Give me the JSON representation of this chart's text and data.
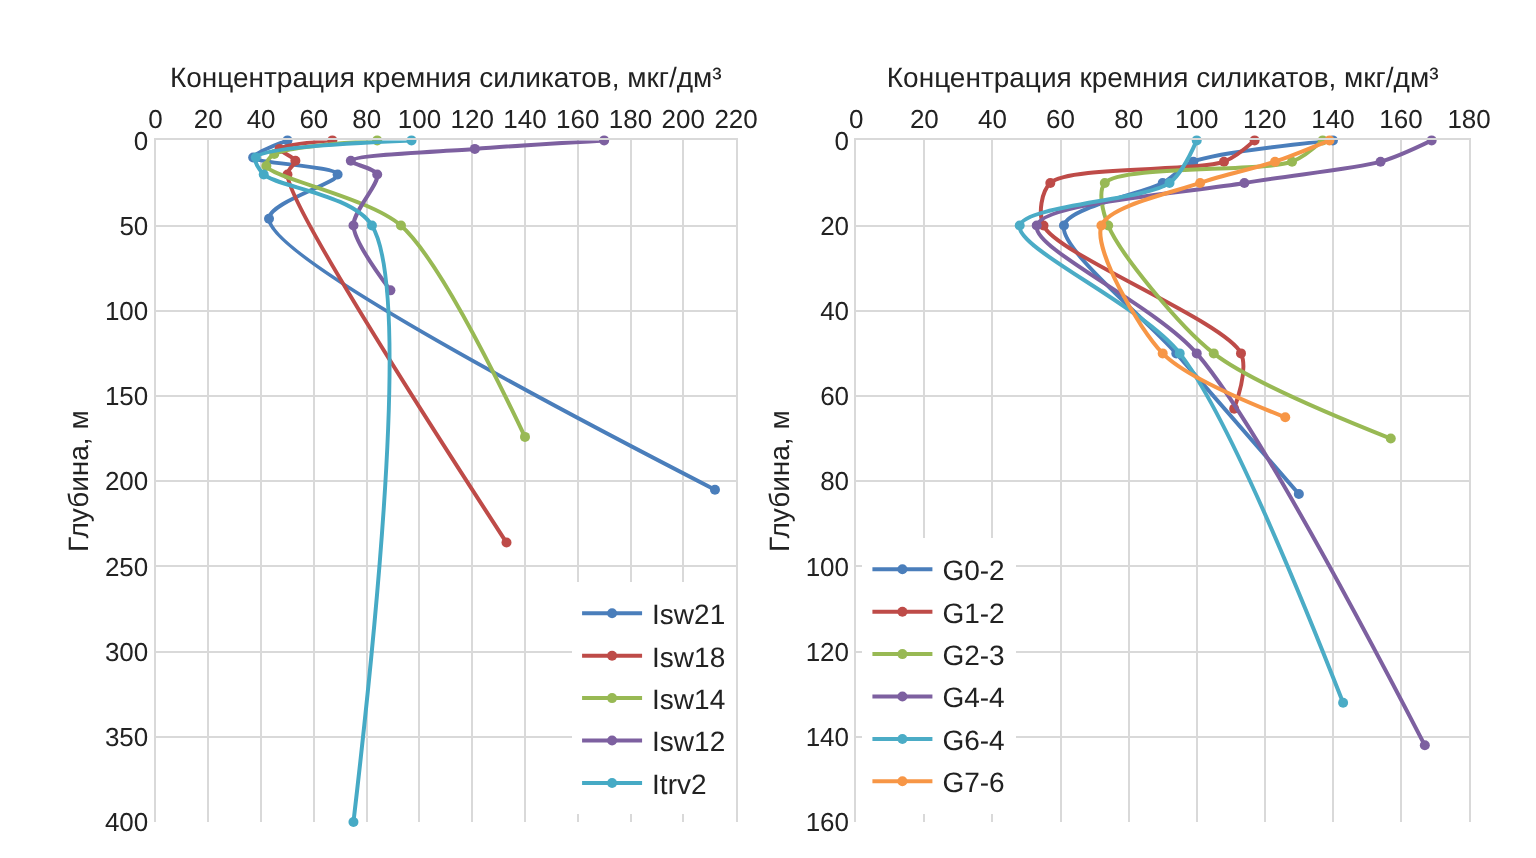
{
  "chart_data": [
    {
      "type": "line",
      "xlabel": "Концентрация кремния силикатов, мкг/дм³",
      "ylabel": "Глубина, м",
      "xlim": [
        0,
        220
      ],
      "xticks": [
        0,
        20,
        40,
        60,
        80,
        100,
        120,
        140,
        160,
        180,
        200,
        220
      ],
      "ylim": [
        400,
        0
      ],
      "yticks": [
        0,
        50,
        100,
        150,
        200,
        250,
        300,
        350,
        400
      ],
      "grid": true,
      "legend": "bottom right",
      "marker": "circle",
      "line_style": "solid",
      "series": [
        {
          "name": "Isw21",
          "color": "#4a7ebb",
          "x": [
            50,
            37,
            69,
            43,
            212
          ],
          "values": [
            0,
            10,
            20,
            46,
            205
          ]
        },
        {
          "name": "Isw18",
          "color": "#be4b48",
          "x": [
            67,
            47,
            53,
            50,
            133
          ],
          "values": [
            0,
            5,
            12,
            20,
            236
          ]
        },
        {
          "name": "Isw14",
          "color": "#98b954",
          "x": [
            84,
            45,
            42,
            93,
            140
          ],
          "values": [
            0,
            8,
            15,
            50,
            174
          ]
        },
        {
          "name": "Isw12",
          "color": "#7d60a0",
          "x": [
            170,
            121,
            74,
            84,
            75,
            89
          ],
          "values": [
            0,
            5,
            12,
            20,
            50,
            88
          ]
        },
        {
          "name": "Itrv2",
          "color": "#46aac5",
          "x": [
            97,
            38,
            41,
            82,
            75
          ],
          "values": [
            0,
            10,
            20,
            50,
            400
          ]
        }
      ]
    },
    {
      "type": "line",
      "xlabel": "Концентрация кремния силикатов, мкг/дм³",
      "ylabel": "Глубина, м",
      "xlim": [
        0,
        180
      ],
      "xticks": [
        0,
        20,
        40,
        60,
        80,
        100,
        120,
        140,
        160,
        180
      ],
      "ylim": [
        160,
        0
      ],
      "yticks": [
        0,
        20,
        40,
        60,
        80,
        100,
        120,
        140,
        160
      ],
      "grid": true,
      "legend": "bottom left",
      "marker": "circle",
      "line_style": "solid",
      "series": [
        {
          "name": "G0-2",
          "color": "#4a7ebb",
          "x": [
            140,
            99,
            90,
            61,
            94,
            130
          ],
          "values": [
            0,
            5,
            10,
            20,
            50,
            83
          ]
        },
        {
          "name": "G1-2",
          "color": "#be4b48",
          "x": [
            117,
            108,
            57,
            55,
            113,
            111
          ],
          "values": [
            0,
            5,
            10,
            20,
            50,
            63
          ]
        },
        {
          "name": "G2-3",
          "color": "#98b954",
          "x": [
            137,
            128,
            73,
            74,
            105,
            157
          ],
          "values": [
            0,
            5,
            10,
            20,
            50,
            70
          ]
        },
        {
          "name": "G4-4",
          "color": "#7d60a0",
          "x": [
            169,
            154,
            114,
            53,
            100,
            167
          ],
          "values": [
            0,
            5,
            10,
            20,
            50,
            142
          ]
        },
        {
          "name": "G6-4",
          "color": "#4bacc6",
          "x": [
            100,
            92,
            48,
            95,
            143
          ],
          "values": [
            0,
            10,
            20,
            50,
            132
          ]
        },
        {
          "name": "G7-6",
          "color": "#f79646",
          "x": [
            139,
            123,
            101,
            72,
            90,
            126
          ],
          "values": [
            0,
            5,
            10,
            20,
            50,
            65
          ]
        }
      ]
    }
  ]
}
